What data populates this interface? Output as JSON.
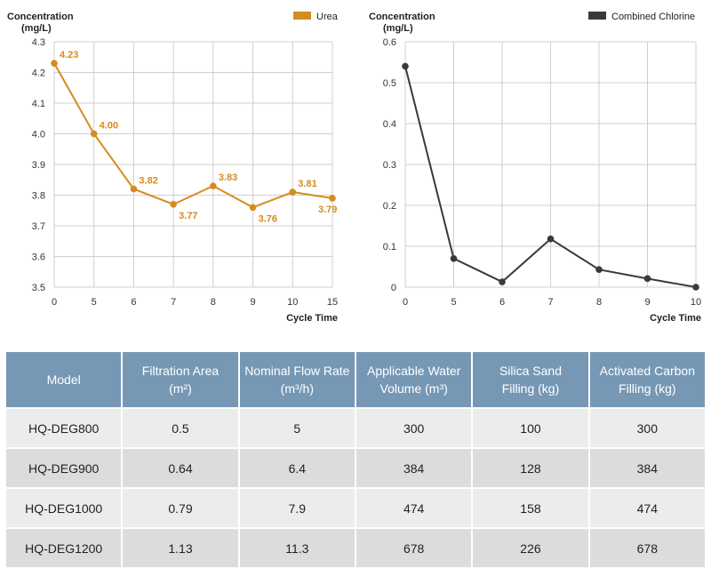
{
  "chart_data": [
    {
      "type": "line",
      "ylabel": "Concentration",
      "ylabel_unit": "(mg/L)",
      "xlabel": "Cycle Time",
      "categories": [
        "0",
        "5",
        "6",
        "7",
        "8",
        "9",
        "10",
        "15"
      ],
      "series": [
        {
          "name": "Urea",
          "color": "#d48c1f",
          "values": [
            4.23,
            4.0,
            3.82,
            3.77,
            3.83,
            3.76,
            3.81,
            3.79
          ],
          "labels": [
            "4.23",
            "4.00",
            "3.82",
            "3.77",
            "3.83",
            "3.76",
            "3.81",
            "3.79"
          ]
        }
      ],
      "ylim": [
        3.5,
        4.3
      ],
      "yticks": [
        "3.5",
        "3.6",
        "3.7",
        "3.8",
        "3.9",
        "4.0",
        "4.1",
        "4.2",
        "4.3"
      ],
      "grid": true,
      "legend": "top-right"
    },
    {
      "type": "line",
      "ylabel": "Concentration",
      "ylabel_unit": "(mg/L)",
      "xlabel": "Cycle Time",
      "categories": [
        "0",
        "5",
        "6",
        "7",
        "8",
        "9",
        "10"
      ],
      "series": [
        {
          "name": "Combined Chlorine",
          "color": "#3a3a3a",
          "values": [
            0.54,
            0.07,
            0.013,
            0.118,
            0.043,
            0.021,
            0.0
          ]
        }
      ],
      "ylim": [
        0,
        0.6
      ],
      "yticks": [
        "0",
        "0.1",
        "0.2",
        "0.3",
        "0.4",
        "0.5",
        "0.6"
      ],
      "grid": true,
      "legend": "top-right"
    }
  ],
  "table": {
    "header_color": "#7698b5",
    "headers": [
      {
        "line1": "Model",
        "line2": ""
      },
      {
        "line1": "Filtration Area",
        "line2": "(m²)"
      },
      {
        "line1": "Nominal Flow Rate",
        "line2": "(m³/h)"
      },
      {
        "line1": "Applicable Water",
        "line2": "Volume (m³)"
      },
      {
        "line1": "Silica Sand",
        "line2": "Filling (kg)"
      },
      {
        "line1": "Activated Carbon",
        "line2": "Filling (kg)"
      }
    ],
    "rows": [
      [
        "HQ-DEG800",
        "0.5",
        "5",
        "300",
        "100",
        "300"
      ],
      [
        "HQ-DEG900",
        "0.64",
        "6.4",
        "384",
        "128",
        "384"
      ],
      [
        "HQ-DEG1000",
        "0.79",
        "7.9",
        "474",
        "158",
        "474"
      ],
      [
        "HQ-DEG1200",
        "1.13",
        "11.3",
        "678",
        "226",
        "678"
      ]
    ]
  }
}
